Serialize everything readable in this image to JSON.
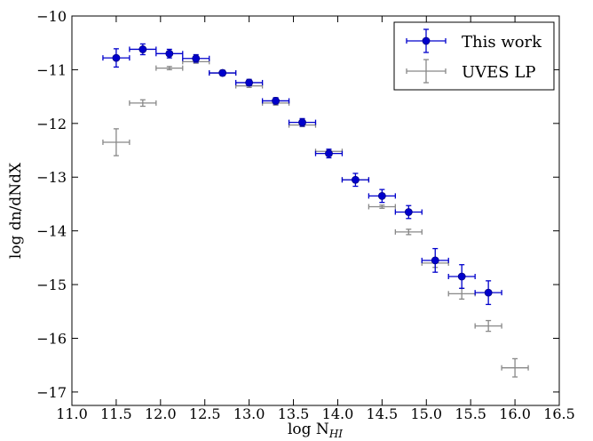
{
  "chart_data": {
    "type": "scatter",
    "xlabel": "log N",
    "xlabel_sub": "HI",
    "ylabel": "log dn/dNdX",
    "xlim": [
      11.0,
      16.5
    ],
    "ylim": [
      -17.25,
      -10.0
    ],
    "xticks": [
      "11.0",
      "11.5",
      "12.0",
      "12.5",
      "13.0",
      "13.5",
      "14.0",
      "14.5",
      "15.0",
      "15.5",
      "16.0",
      "16.5"
    ],
    "yticks": [
      "−10",
      "−11",
      "−12",
      "−13",
      "−14",
      "−15",
      "−16",
      "−17"
    ],
    "grid": false,
    "legend": "top-right",
    "series": [
      {
        "name": "This work",
        "color": "#0000cc",
        "marker": "circle",
        "x": [
          11.5,
          11.8,
          12.1,
          12.4,
          12.7,
          13.0,
          13.3,
          13.6,
          13.9,
          14.2,
          14.5,
          14.8,
          15.1,
          15.4,
          15.7
        ],
        "y": [
          -10.78,
          -10.62,
          -10.7,
          -10.79,
          -11.06,
          -11.24,
          -11.58,
          -11.98,
          -12.56,
          -13.05,
          -13.35,
          -13.65,
          -14.55,
          -14.85,
          -15.15
        ],
        "xerr": 0.15,
        "yerr": [
          0.17,
          0.1,
          0.08,
          0.07,
          0.05,
          0.06,
          0.06,
          0.07,
          0.08,
          0.12,
          0.12,
          0.12,
          0.22,
          0.22,
          0.22
        ]
      },
      {
        "name": "UVES LP",
        "color": "#888888",
        "marker": "none",
        "x": [
          11.5,
          11.8,
          12.1,
          12.4,
          12.7,
          13.0,
          13.3,
          13.6,
          13.9,
          14.2,
          14.5,
          14.8,
          15.1,
          15.4,
          15.7,
          16.0
        ],
        "y": [
          -12.35,
          -11.62,
          -10.97,
          -10.85,
          -11.06,
          -11.3,
          -11.62,
          -12.03,
          -12.52,
          -13.05,
          -13.55,
          -14.02,
          -14.6,
          -15.17,
          -15.77,
          -16.55
        ],
        "xerr": 0.15,
        "yerr": [
          0.25,
          0.06,
          0.03,
          0.03,
          0.02,
          0.03,
          0.04,
          0.03,
          0.03,
          0.03,
          0.03,
          0.05,
          0.08,
          0.1,
          0.1,
          0.17
        ]
      }
    ]
  }
}
